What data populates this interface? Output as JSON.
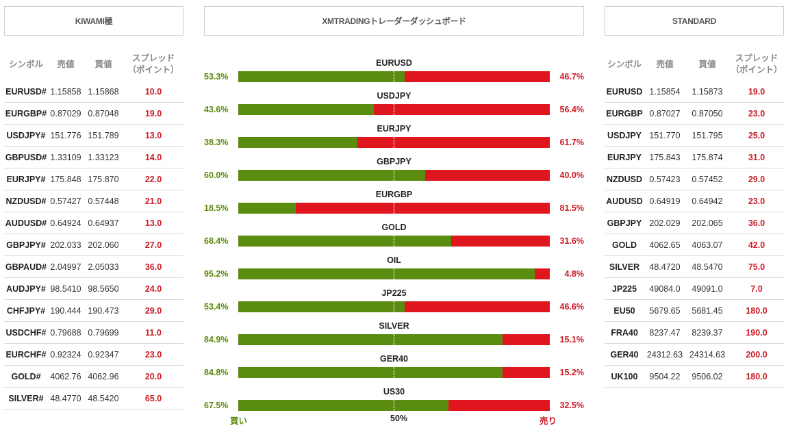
{
  "headers": {
    "left": "KIWAMI極",
    "middle": "XMTRADINGトレーダーダッシュボード",
    "right": "STANDARD"
  },
  "columns": {
    "symbol": "シンボル",
    "bid": "売値",
    "ask": "買値",
    "spread": "スプレッド（ポイント）"
  },
  "kiwami_rows": [
    {
      "symbol": "EURUSD#",
      "bid": "1.15858",
      "ask": "1.15868",
      "spread": "10.0"
    },
    {
      "symbol": "EURGBP#",
      "bid": "0.87029",
      "ask": "0.87048",
      "spread": "19.0"
    },
    {
      "symbol": "USDJPY#",
      "bid": "151.776",
      "ask": "151.789",
      "spread": "13.0"
    },
    {
      "symbol": "GBPUSD#",
      "bid": "1.33109",
      "ask": "1.33123",
      "spread": "14.0"
    },
    {
      "symbol": "EURJPY#",
      "bid": "175.848",
      "ask": "175.870",
      "spread": "22.0"
    },
    {
      "symbol": "NZDUSD#",
      "bid": "0.57427",
      "ask": "0.57448",
      "spread": "21.0"
    },
    {
      "symbol": "AUDUSD#",
      "bid": "0.64924",
      "ask": "0.64937",
      "spread": "13.0"
    },
    {
      "symbol": "GBPJPY#",
      "bid": "202.033",
      "ask": "202.060",
      "spread": "27.0"
    },
    {
      "symbol": "GBPAUD#",
      "bid": "2.04997",
      "ask": "2.05033",
      "spread": "36.0"
    },
    {
      "symbol": "AUDJPY#",
      "bid": "98.5410",
      "ask": "98.5650",
      "spread": "24.0"
    },
    {
      "symbol": "CHFJPY#",
      "bid": "190.444",
      "ask": "190.473",
      "spread": "29.0"
    },
    {
      "symbol": "USDCHF#",
      "bid": "0.79688",
      "ask": "0.79699",
      "spread": "11.0"
    },
    {
      "symbol": "EURCHF#",
      "bid": "0.92324",
      "ask": "0.92347",
      "spread": "23.0"
    },
    {
      "symbol": "GOLD#",
      "bid": "4062.76",
      "ask": "4062.96",
      "spread": "20.0"
    },
    {
      "symbol": "SILVER#",
      "bid": "48.4770",
      "ask": "48.5420",
      "spread": "65.0"
    }
  ],
  "standard_rows": [
    {
      "symbol": "EURUSD",
      "bid": "1.15854",
      "ask": "1.15873",
      "spread": "19.0"
    },
    {
      "symbol": "EURGBP",
      "bid": "0.87027",
      "ask": "0.87050",
      "spread": "23.0"
    },
    {
      "symbol": "USDJPY",
      "bid": "151.770",
      "ask": "151.795",
      "spread": "25.0"
    },
    {
      "symbol": "EURJPY",
      "bid": "175.843",
      "ask": "175.874",
      "spread": "31.0"
    },
    {
      "symbol": "NZDUSD",
      "bid": "0.57423",
      "ask": "0.57452",
      "spread": "29.0"
    },
    {
      "symbol": "AUDUSD",
      "bid": "0.64919",
      "ask": "0.64942",
      "spread": "23.0"
    },
    {
      "symbol": "GBPJPY",
      "bid": "202.029",
      "ask": "202.065",
      "spread": "36.0"
    },
    {
      "symbol": "GOLD",
      "bid": "4062.65",
      "ask": "4063.07",
      "spread": "42.0"
    },
    {
      "symbol": "SILVER",
      "bid": "48.4720",
      "ask": "48.5470",
      "spread": "75.0"
    },
    {
      "symbol": "JP225",
      "bid": "49084.0",
      "ask": "49091.0",
      "spread": "7.0"
    },
    {
      "symbol": "EU50",
      "bid": "5679.65",
      "ask": "5681.45",
      "spread": "180.0"
    },
    {
      "symbol": "FRA40",
      "bid": "8237.47",
      "ask": "8239.37",
      "spread": "190.0"
    },
    {
      "symbol": "GER40",
      "bid": "24312.63",
      "ask": "24314.63",
      "spread": "200.0"
    },
    {
      "symbol": "UK100",
      "bid": "9504.22",
      "ask": "9506.02",
      "spread": "180.0"
    }
  ],
  "sentiment": [
    {
      "symbol": "EURUSD",
      "buy": 53.3,
      "sell": 46.7,
      "buy_label": "53.3%",
      "sell_label": "46.7%"
    },
    {
      "symbol": "USDJPY",
      "buy": 43.6,
      "sell": 56.4,
      "buy_label": "43.6%",
      "sell_label": "56.4%"
    },
    {
      "symbol": "EURJPY",
      "buy": 38.3,
      "sell": 61.7,
      "buy_label": "38.3%",
      "sell_label": "61.7%"
    },
    {
      "symbol": "GBPJPY",
      "buy": 60.0,
      "sell": 40.0,
      "buy_label": "60.0%",
      "sell_label": "40.0%"
    },
    {
      "symbol": "EURGBP",
      "buy": 18.5,
      "sell": 81.5,
      "buy_label": "18.5%",
      "sell_label": "81.5%"
    },
    {
      "symbol": "GOLD",
      "buy": 68.4,
      "sell": 31.6,
      "buy_label": "68.4%",
      "sell_label": "31.6%"
    },
    {
      "symbol": "OIL",
      "buy": 95.2,
      "sell": 4.8,
      "buy_label": "95.2%",
      "sell_label": "4.8%"
    },
    {
      "symbol": "JP225",
      "buy": 53.4,
      "sell": 46.6,
      "buy_label": "53.4%",
      "sell_label": "46.6%"
    },
    {
      "symbol": "SILVER",
      "buy": 84.9,
      "sell": 15.1,
      "buy_label": "84.9%",
      "sell_label": "15.1%"
    },
    {
      "symbol": "GER40",
      "buy": 84.8,
      "sell": 15.2,
      "buy_label": "84.8%",
      "sell_label": "15.2%"
    },
    {
      "symbol": "US30",
      "buy": 67.5,
      "sell": 32.5,
      "buy_label": "67.5%",
      "sell_label": "32.5%"
    }
  ],
  "footer": {
    "buy": "買い",
    "mid": "50%",
    "sell": "売り"
  },
  "colors": {
    "buy": "#5a8c0f",
    "sell": "#e0161f",
    "spread": "#cc1b25"
  }
}
